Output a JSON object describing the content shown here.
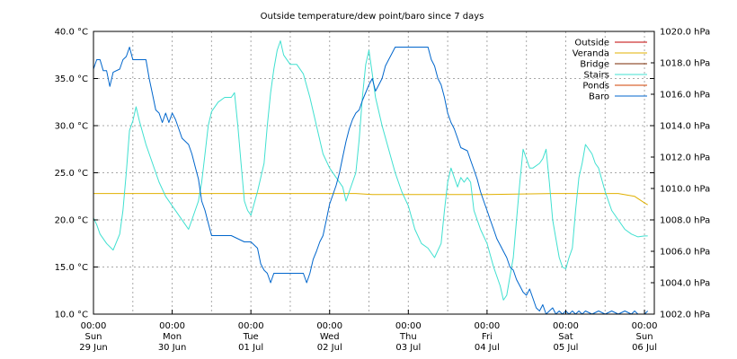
{
  "chart_data": {
    "type": "line",
    "title": "Outside temperature/dew point/baro since 7 days",
    "y_left": {
      "unit": "°C",
      "ylim": [
        10.0,
        40.0
      ],
      "ticks": [
        10.0,
        15.0,
        20.0,
        25.0,
        30.0,
        35.0,
        40.0
      ],
      "tick_labels": [
        "10.0 °C",
        "15.0 °C",
        "20.0 °C",
        "25.0 °C",
        "30.0 °C",
        "35.0 °C",
        "40.0 °C"
      ]
    },
    "y_right": {
      "unit": "hPa",
      "ylim": [
        1002.0,
        1020.0
      ],
      "ticks": [
        1002.0,
        1004.0,
        1006.0,
        1008.0,
        1010.0,
        1012.0,
        1014.0,
        1016.0,
        1018.0,
        1020.0
      ],
      "tick_labels": [
        "1002.0 hPa",
        "1004.0 hPa",
        "1006.0 hPa",
        "1008.0 hPa",
        "1010.0 hPa",
        "1012.0 hPa",
        "1014.0 hPa",
        "1016.0 hPa",
        "1018.0 hPa",
        "1020.0 hPa"
      ]
    },
    "x_axis": {
      "unit": "hours since Sun 29 Jun 00:00",
      "xlim": [
        0,
        171
      ],
      "ticks": [
        {
          "x": 0,
          "time": "00:00",
          "day": "Sun",
          "date": "29 Jun"
        },
        {
          "x": 24,
          "time": "00:00",
          "day": "Mon",
          "date": "30 Jun"
        },
        {
          "x": 48,
          "time": "00:00",
          "day": "Tue",
          "date": "01 Jul"
        },
        {
          "x": 72,
          "time": "00:00",
          "day": "Wed",
          "date": "02 Jul"
        },
        {
          "x": 96,
          "time": "00:00",
          "day": "Thu",
          "date": "03 Jul"
        },
        {
          "x": 120,
          "time": "00:00",
          "day": "Fri",
          "date": "04 Jul"
        },
        {
          "x": 144,
          "time": "00:00",
          "day": "Sat",
          "date": "05 Jul"
        },
        {
          "x": 168,
          "time": "00:00",
          "day": "Sun",
          "date": "06 Jul"
        }
      ],
      "minor_grid": [
        12,
        36,
        60,
        84,
        108,
        132,
        156
      ]
    },
    "grid": true,
    "legend_position": "top-right",
    "series": [
      {
        "name": "Outside",
        "color": "#c00000",
        "axis": "left",
        "points": []
      },
      {
        "name": "Veranda",
        "color": "#e0b000",
        "axis": "left",
        "points": [
          [
            0,
            22.8
          ],
          [
            20,
            22.8
          ],
          [
            40,
            22.8
          ],
          [
            60,
            22.8
          ],
          [
            80,
            22.8
          ],
          [
            85,
            22.7
          ],
          [
            100,
            22.7
          ],
          [
            120,
            22.7
          ],
          [
            140,
            22.8
          ],
          [
            160,
            22.8
          ],
          [
            165,
            22.5
          ],
          [
            168,
            21.8
          ],
          [
            169,
            21.6
          ]
        ]
      },
      {
        "name": "Bridge",
        "color": "#7a2a00",
        "axis": "left",
        "points": []
      },
      {
        "name": "Stairs",
        "color": "#40e0d0",
        "axis": "left",
        "points": [
          [
            0,
            20.2
          ],
          [
            1,
            19.5
          ],
          [
            2,
            18.5
          ],
          [
            4,
            17.5
          ],
          [
            6,
            16.8
          ],
          [
            8,
            18.5
          ],
          [
            9,
            21
          ],
          [
            10,
            25
          ],
          [
            11,
            29.5
          ],
          [
            12,
            30.5
          ],
          [
            13,
            32
          ],
          [
            14,
            30.5
          ],
          [
            16,
            28
          ],
          [
            18,
            26
          ],
          [
            20,
            24
          ],
          [
            22,
            22.5
          ],
          [
            24,
            21.5
          ],
          [
            26,
            20.5
          ],
          [
            28,
            19.5
          ],
          [
            29,
            19
          ],
          [
            30,
            20
          ],
          [
            32,
            22
          ],
          [
            33,
            24
          ],
          [
            34,
            27
          ],
          [
            35,
            30
          ],
          [
            36,
            31.5
          ],
          [
            38,
            32.5
          ],
          [
            40,
            33
          ],
          [
            42,
            33
          ],
          [
            43,
            33.5
          ],
          [
            44,
            30
          ],
          [
            45,
            26
          ],
          [
            46,
            22
          ],
          [
            47,
            21
          ],
          [
            48,
            20.5
          ],
          [
            50,
            23
          ],
          [
            52,
            26
          ],
          [
            53,
            30
          ],
          [
            54,
            33.5
          ],
          [
            55,
            36
          ],
          [
            56,
            38
          ],
          [
            57,
            39
          ],
          [
            58,
            37.5
          ],
          [
            60,
            36.5
          ],
          [
            62,
            36.5
          ],
          [
            64,
            35.5
          ],
          [
            66,
            33
          ],
          [
            68,
            30
          ],
          [
            70,
            27
          ],
          [
            72,
            25.5
          ],
          [
            74,
            24.5
          ],
          [
            76,
            23.5
          ],
          [
            77,
            22
          ],
          [
            78,
            23
          ],
          [
            80,
            25
          ],
          [
            81,
            28.5
          ],
          [
            82,
            33
          ],
          [
            83,
            36.5
          ],
          [
            84,
            38
          ],
          [
            85,
            35.5
          ],
          [
            86,
            33
          ],
          [
            88,
            30
          ],
          [
            90,
            27.5
          ],
          [
            92,
            25
          ],
          [
            94,
            23
          ],
          [
            96,
            21.5
          ],
          [
            98,
            19
          ],
          [
            100,
            17.5
          ],
          [
            102,
            17
          ],
          [
            104,
            16
          ],
          [
            106,
            17.5
          ],
          [
            107,
            21
          ],
          [
            108,
            24
          ],
          [
            109,
            25.5
          ],
          [
            110,
            24.5
          ],
          [
            111,
            23.5
          ],
          [
            112,
            24.5
          ],
          [
            113,
            24
          ],
          [
            114,
            24.5
          ],
          [
            115,
            24
          ],
          [
            116,
            21
          ],
          [
            118,
            19
          ],
          [
            120,
            17.5
          ],
          [
            122,
            15
          ],
          [
            124,
            13
          ],
          [
            125,
            11.5
          ],
          [
            126,
            12
          ],
          [
            127,
            14
          ],
          [
            128,
            16
          ],
          [
            129,
            20
          ],
          [
            130,
            24
          ],
          [
            131,
            27.5
          ],
          [
            132,
            26.5
          ],
          [
            133,
            25.5
          ],
          [
            134,
            25.5
          ],
          [
            136,
            26
          ],
          [
            137,
            26.5
          ],
          [
            138,
            27.5
          ],
          [
            139,
            24
          ],
          [
            140,
            20
          ],
          [
            141,
            18
          ],
          [
            142,
            16
          ],
          [
            143,
            15
          ],
          [
            144,
            14.8
          ],
          [
            145,
            16
          ],
          [
            146,
            17
          ],
          [
            147,
            21
          ],
          [
            148,
            24.5
          ],
          [
            149,
            26
          ],
          [
            150,
            28
          ],
          [
            152,
            27
          ],
          [
            153,
            26
          ],
          [
            154,
            25.5
          ],
          [
            156,
            23
          ],
          [
            158,
            21
          ],
          [
            160,
            20
          ],
          [
            162,
            19
          ],
          [
            164,
            18.5
          ],
          [
            166,
            18.2
          ],
          [
            168,
            18.3
          ],
          [
            169,
            18.3
          ]
        ]
      },
      {
        "name": "Ponds",
        "color": "#d04000",
        "axis": "left",
        "points": []
      },
      {
        "name": "Baro",
        "color": "#0066cc",
        "axis": "right",
        "points": [
          [
            0,
            1017.6
          ],
          [
            1,
            1018.2
          ],
          [
            2,
            1018.2
          ],
          [
            3,
            1017.5
          ],
          [
            4,
            1017.5
          ],
          [
            5,
            1016.5
          ],
          [
            6,
            1017.4
          ],
          [
            8,
            1017.6
          ],
          [
            9,
            1018.2
          ],
          [
            10,
            1018.4
          ],
          [
            11,
            1019.0
          ],
          [
            12,
            1018.2
          ],
          [
            14,
            1018.2
          ],
          [
            16,
            1018.2
          ],
          [
            17,
            1017.0
          ],
          [
            18,
            1016.0
          ],
          [
            19,
            1015.0
          ],
          [
            20,
            1014.8
          ],
          [
            21,
            1014.2
          ],
          [
            22,
            1014.8
          ],
          [
            23,
            1014.2
          ],
          [
            24,
            1014.8
          ],
          [
            25,
            1014.4
          ],
          [
            26,
            1013.8
          ],
          [
            27,
            1013.2
          ],
          [
            28,
            1013.0
          ],
          [
            29,
            1012.8
          ],
          [
            30,
            1012.2
          ],
          [
            31,
            1011.4
          ],
          [
            32,
            1010.6
          ],
          [
            33,
            1009.2
          ],
          [
            34,
            1008.6
          ],
          [
            35,
            1007.8
          ],
          [
            36,
            1007.0
          ],
          [
            38,
            1007.0
          ],
          [
            40,
            1007.0
          ],
          [
            42,
            1007.0
          ],
          [
            44,
            1006.8
          ],
          [
            46,
            1006.6
          ],
          [
            48,
            1006.6
          ],
          [
            50,
            1006.2
          ],
          [
            51,
            1005.2
          ],
          [
            52,
            1004.8
          ],
          [
            53,
            1004.6
          ],
          [
            54,
            1004.0
          ],
          [
            55,
            1004.6
          ],
          [
            56,
            1004.6
          ],
          [
            58,
            1004.6
          ],
          [
            60,
            1004.6
          ],
          [
            62,
            1004.6
          ],
          [
            64,
            1004.6
          ],
          [
            65,
            1004.0
          ],
          [
            66,
            1004.6
          ],
          [
            67,
            1005.5
          ],
          [
            68,
            1006.0
          ],
          [
            69,
            1006.6
          ],
          [
            70,
            1007.0
          ],
          [
            71,
            1008.0
          ],
          [
            72,
            1009.0
          ],
          [
            73,
            1009.6
          ],
          [
            74,
            1010.2
          ],
          [
            75,
            1011.0
          ],
          [
            76,
            1012.0
          ],
          [
            77,
            1013.0
          ],
          [
            78,
            1013.8
          ],
          [
            79,
            1014.4
          ],
          [
            80,
            1014.8
          ],
          [
            81,
            1015.0
          ],
          [
            82,
            1015.6
          ],
          [
            84,
            1016.6
          ],
          [
            85,
            1017.0
          ],
          [
            86,
            1016.2
          ],
          [
            87,
            1016.6
          ],
          [
            88,
            1017.0
          ],
          [
            89,
            1017.8
          ],
          [
            90,
            1018.2
          ],
          [
            91,
            1018.6
          ],
          [
            92,
            1019.0
          ],
          [
            93,
            1019.0
          ],
          [
            94,
            1019.0
          ],
          [
            95,
            1019.0
          ],
          [
            96,
            1019.0
          ],
          [
            98,
            1019.0
          ],
          [
            100,
            1019.0
          ],
          [
            102,
            1019.0
          ],
          [
            103,
            1018.2
          ],
          [
            104,
            1017.8
          ],
          [
            105,
            1017.0
          ],
          [
            106,
            1016.6
          ],
          [
            107,
            1015.8
          ],
          [
            108,
            1014.8
          ],
          [
            109,
            1014.2
          ],
          [
            110,
            1013.8
          ],
          [
            111,
            1013.2
          ],
          [
            112,
            1012.6
          ],
          [
            114,
            1012.4
          ],
          [
            115,
            1011.8
          ],
          [
            116,
            1011.2
          ],
          [
            117,
            1010.6
          ],
          [
            118,
            1009.8
          ],
          [
            119,
            1009.2
          ],
          [
            120,
            1008.6
          ],
          [
            121,
            1008.0
          ],
          [
            122,
            1007.4
          ],
          [
            123,
            1006.8
          ],
          [
            124,
            1006.4
          ],
          [
            125,
            1006.0
          ],
          [
            126,
            1005.6
          ],
          [
            127,
            1005.0
          ],
          [
            128,
            1004.8
          ],
          [
            129,
            1004.2
          ],
          [
            130,
            1003.8
          ],
          [
            131,
            1003.4
          ],
          [
            132,
            1003.2
          ],
          [
            133,
            1003.6
          ],
          [
            134,
            1003.0
          ],
          [
            135,
            1002.4
          ],
          [
            136,
            1002.2
          ],
          [
            137,
            1002.6
          ],
          [
            138,
            1002.0
          ],
          [
            139,
            1002.2
          ],
          [
            140,
            1002.4
          ],
          [
            141,
            1002.0
          ],
          [
            142,
            1002.2
          ],
          [
            143,
            1002.0
          ],
          [
            144,
            1002.2
          ],
          [
            145,
            1002.0
          ],
          [
            146,
            1002.2
          ],
          [
            147,
            1002.0
          ],
          [
            148,
            1002.2
          ],
          [
            149,
            1002.0
          ],
          [
            150,
            1002.2
          ],
          [
            152,
            1002.0
          ],
          [
            154,
            1002.2
          ],
          [
            156,
            1002.0
          ],
          [
            158,
            1002.2
          ],
          [
            160,
            1002.0
          ],
          [
            162,
            1002.2
          ],
          [
            164,
            1002.0
          ],
          [
            165,
            1002.2
          ],
          [
            166,
            1002.0
          ],
          [
            168,
            1002.0
          ],
          [
            169,
            1002.2
          ]
        ]
      }
    ]
  }
}
